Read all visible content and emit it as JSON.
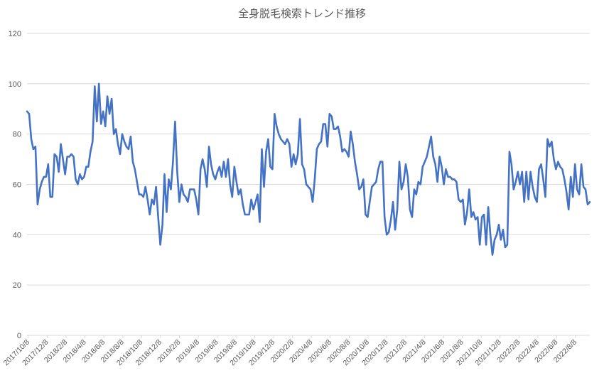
{
  "chart_data": {
    "type": "line",
    "title": "全身脱毛検索トレンド推移",
    "xlabel": "",
    "ylabel": "",
    "ylim": [
      0,
      120
    ],
    "yticks": [
      0,
      20,
      40,
      60,
      80,
      100,
      120
    ],
    "grid": true,
    "legend": "none",
    "line_color": "#4472C4",
    "x_tick_labels": [
      "2017/10/8",
      "2017/12/8",
      "2018/2/8",
      "2018/4/8",
      "2018/6/8",
      "2018/8/8",
      "2018/10/8",
      "2018/12/8",
      "2019/2/8",
      "2019/4/8",
      "2019/6/8",
      "2019/8/8",
      "2019/10/8",
      "2019/12/8",
      "2020/2/8",
      "2020/4/8",
      "2020/6/8",
      "2020/8/8",
      "2020/10/8",
      "2020/12/8",
      "2021/2/8",
      "2021/4/8",
      "2021/6/8",
      "2021/8/8",
      "2021/10/8",
      "2021/12/8",
      "2022/2/8",
      "2022/4/8",
      "2022/6/8",
      "2022/8/8"
    ],
    "series": [
      {
        "name": "全身脱毛",
        "values": [
          89,
          88,
          78,
          74,
          75,
          52,
          58,
          61,
          63,
          63,
          68,
          55,
          55,
          72,
          71,
          65,
          76,
          70,
          64,
          71,
          71,
          72,
          71,
          62,
          60,
          64,
          62,
          63,
          67,
          67,
          73,
          77,
          99,
          85,
          100,
          84,
          89,
          83,
          95,
          88,
          94,
          80,
          82,
          76,
          72,
          80,
          77,
          75,
          74,
          79,
          69,
          66,
          61,
          56,
          56,
          55,
          59,
          54,
          48,
          54,
          52,
          59,
          47,
          36,
          44,
          64,
          49,
          62,
          58,
          69,
          85,
          65,
          53,
          60,
          56,
          55,
          53,
          58,
          58,
          58,
          54,
          48,
          66,
          70,
          66,
          59,
          75,
          68,
          64,
          62,
          65,
          67,
          63,
          69,
          63,
          70,
          60,
          55,
          67,
          61,
          56,
          58,
          52,
          48,
          48,
          48,
          54,
          50,
          53,
          56,
          45,
          74,
          59,
          73,
          78,
          67,
          66,
          88,
          83,
          80,
          78,
          77,
          76,
          78,
          76,
          67,
          72,
          68,
          72,
          86,
          68,
          66,
          60,
          59,
          58,
          53,
          62,
          74,
          76,
          77,
          84,
          84,
          75,
          88,
          87,
          82,
          82,
          83,
          79,
          73,
          74,
          73,
          71,
          81,
          76,
          69,
          64,
          58,
          59,
          62,
          48,
          47,
          53,
          59,
          60,
          61,
          66,
          69,
          69,
          47,
          40,
          41,
          46,
          53,
          42,
          50,
          69,
          58,
          61,
          68,
          63,
          50,
          47,
          58,
          56,
          61,
          60,
          67,
          69,
          71,
          75,
          79,
          71,
          68,
          61,
          71,
          67,
          60,
          66,
          63,
          63,
          62,
          62,
          61,
          54,
          53,
          54,
          44,
          49,
          58,
          47,
          49,
          46,
          47,
          36,
          47,
          48,
          36,
          51,
          40,
          32,
          38,
          40,
          44,
          38,
          42,
          35,
          36,
          73,
          68,
          58,
          61,
          65,
          60,
          65,
          53,
          65,
          54,
          65,
          59,
          55,
          53,
          66,
          68,
          62,
          55,
          78,
          75,
          77,
          70,
          66,
          69,
          67,
          66,
          62,
          57,
          50,
          63,
          55,
          68,
          58,
          56,
          68,
          59,
          58,
          52,
          53
        ]
      }
    ]
  }
}
